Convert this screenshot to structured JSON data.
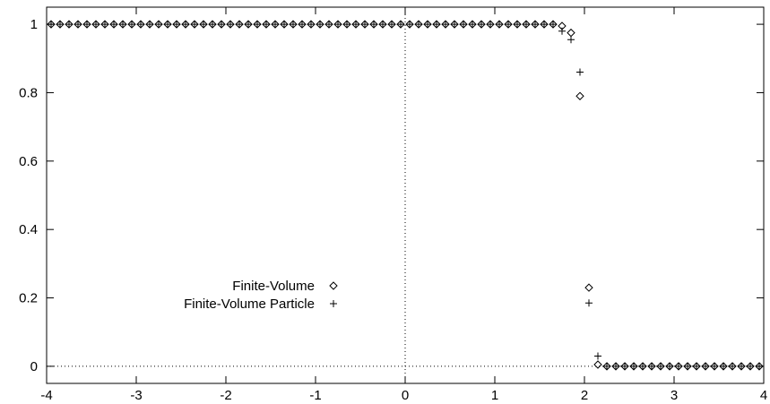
{
  "chart_data": {
    "type": "scatter",
    "title": "",
    "xlabel": "",
    "ylabel": "",
    "xlim": [
      -4,
      4
    ],
    "ylim": [
      -0.05,
      1.05
    ],
    "xticks": [
      -4,
      -3,
      -2,
      -1,
      0,
      1,
      2,
      3,
      4
    ],
    "xtick_labels": [
      "-4",
      "-3",
      "-2",
      "-1",
      "0",
      "1",
      "2",
      "3",
      "4"
    ],
    "yticks": [
      0,
      0.2,
      0.4,
      0.6,
      0.8,
      1
    ],
    "ytick_labels": [
      "0",
      "0.2",
      "0.4",
      "0.6",
      "0.8",
      "1"
    ],
    "zero_axes": "dotted lines at x=0 and y=0",
    "legend_position": "left, lower middle",
    "series": [
      {
        "name": "Finite-Volume",
        "marker": "diamond",
        "x": [
          -3.95,
          -3.85,
          -3.75,
          -3.65,
          -3.55,
          -3.45,
          -3.35,
          -3.25,
          -3.15,
          -3.05,
          -2.95,
          -2.85,
          -2.75,
          -2.65,
          -2.55,
          -2.45,
          -2.35,
          -2.25,
          -2.15,
          -2.05,
          -1.95,
          -1.85,
          -1.75,
          -1.65,
          -1.55,
          -1.45,
          -1.35,
          -1.25,
          -1.15,
          -1.05,
          -0.95,
          -0.85,
          -0.75,
          -0.65,
          -0.55,
          -0.45,
          -0.35,
          -0.25,
          -0.15,
          -0.05,
          0.05,
          0.15,
          0.25,
          0.35,
          0.45,
          0.55,
          0.65,
          0.75,
          0.85,
          0.95,
          1.05,
          1.15,
          1.25,
          1.35,
          1.45,
          1.55,
          1.65,
          1.75,
          1.85,
          1.95,
          2.05,
          2.15,
          2.25,
          2.35,
          2.45,
          2.55,
          2.65,
          2.75,
          2.85,
          2.95,
          3.05,
          3.15,
          3.25,
          3.35,
          3.45,
          3.55,
          3.65,
          3.75,
          3.85,
          3.95
        ],
        "y": [
          1,
          1,
          1,
          1,
          1,
          1,
          1,
          1,
          1,
          1,
          1,
          1,
          1,
          1,
          1,
          1,
          1,
          1,
          1,
          1,
          1,
          1,
          1,
          1,
          1,
          1,
          1,
          1,
          1,
          1,
          1,
          1,
          1,
          1,
          1,
          1,
          1,
          1,
          1,
          1,
          1,
          1,
          1,
          1,
          1,
          1,
          1,
          1,
          1,
          1,
          1,
          1,
          1,
          1,
          1,
          1,
          1,
          0.995,
          0.975,
          0.79,
          0.23,
          0.005,
          0,
          0,
          0,
          0,
          0,
          0,
          0,
          0,
          0,
          0,
          0,
          0,
          0,
          0,
          0,
          0,
          0,
          0
        ]
      },
      {
        "name": "Finite-Volume Particle",
        "marker": "plus",
        "x": [
          -3.95,
          -3.85,
          -3.75,
          -3.65,
          -3.55,
          -3.45,
          -3.35,
          -3.25,
          -3.15,
          -3.05,
          -2.95,
          -2.85,
          -2.75,
          -2.65,
          -2.55,
          -2.45,
          -2.35,
          -2.25,
          -2.15,
          -2.05,
          -1.95,
          -1.85,
          -1.75,
          -1.65,
          -1.55,
          -1.45,
          -1.35,
          -1.25,
          -1.15,
          -1.05,
          -0.95,
          -0.85,
          -0.75,
          -0.65,
          -0.55,
          -0.45,
          -0.35,
          -0.25,
          -0.15,
          -0.05,
          0.05,
          0.15,
          0.25,
          0.35,
          0.45,
          0.55,
          0.65,
          0.75,
          0.85,
          0.95,
          1.05,
          1.15,
          1.25,
          1.35,
          1.45,
          1.55,
          1.65,
          1.75,
          1.85,
          1.95,
          2.05,
          2.15,
          2.25,
          2.35,
          2.45,
          2.55,
          2.65,
          2.75,
          2.85,
          2.95,
          3.05,
          3.15,
          3.25,
          3.35,
          3.45,
          3.55,
          3.65,
          3.75,
          3.85,
          3.95
        ],
        "y": [
          1,
          1,
          1,
          1,
          1,
          1,
          1,
          1,
          1,
          1,
          1,
          1,
          1,
          1,
          1,
          1,
          1,
          1,
          1,
          1,
          1,
          1,
          1,
          1,
          1,
          1,
          1,
          1,
          1,
          1,
          1,
          1,
          1,
          1,
          1,
          1,
          1,
          1,
          1,
          1,
          1,
          1,
          1,
          1,
          1,
          1,
          1,
          1,
          1,
          1,
          1,
          1,
          1,
          1,
          1,
          1,
          1,
          0.98,
          0.955,
          0.86,
          0.185,
          0.03,
          0,
          0,
          0,
          0,
          0,
          0,
          0,
          0,
          0,
          0,
          0,
          0,
          0,
          0,
          0,
          0,
          0,
          0
        ]
      }
    ]
  }
}
